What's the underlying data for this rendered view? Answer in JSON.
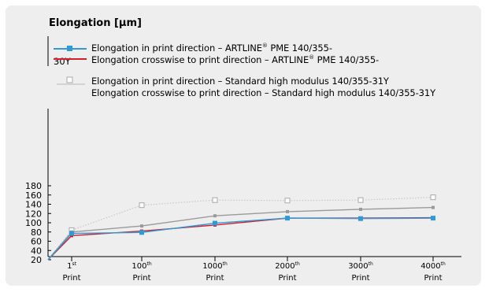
{
  "chart_data": {
    "type": "line",
    "ylabel": "Elongation [µm]",
    "ylim": [
      20,
      180
    ],
    "yticks": [
      20,
      40,
      60,
      80,
      100,
      120,
      140,
      160,
      180
    ],
    "x_start": 0,
    "categories": [
      {
        "num": "1",
        "sup": "st",
        "word": "Print"
      },
      {
        "num": "100",
        "sup": "th",
        "word": "Print"
      },
      {
        "num": "1000",
        "sup": "th",
        "word": "Print"
      },
      {
        "num": "2000",
        "sup": "th",
        "word": "Print"
      },
      {
        "num": "3000",
        "sup": "th",
        "word": "Print"
      },
      {
        "num": "4000",
        "sup": "th",
        "word": "Print"
      }
    ],
    "legend": {
      "line1_a": "Elongation in print direction – ARTLINE",
      "line1_b": "PME 140/355-",
      "line1_cont": "30Y",
      "line2_a": "Elongation crosswise to print direction – ARTLINE",
      "line2_b": "PME 140/355-",
      "line3": "Elongation in print direction – Standard high modulus 140/355-31Y",
      "line4": "Elongation crosswise to print direction – Standard high modulus 140/355-31Y"
    },
    "series": [
      {
        "key": "artline_print",
        "color": "#2f9ad6",
        "marker": "square-filled",
        "start": 20,
        "values": [
          77,
          79,
          99,
          110,
          109,
          110
        ]
      },
      {
        "key": "artline_cross",
        "color": "#d0202c",
        "marker": "square-small",
        "start": 20,
        "values": [
          72,
          82,
          95,
          110,
          110,
          111
        ]
      },
      {
        "key": "std_print",
        "color": "#c8c8c8",
        "marker": "square-open",
        "dotted": true,
        "start": 20,
        "values": [
          84,
          138,
          149,
          148,
          149,
          155
        ]
      },
      {
        "key": "std_cross",
        "color": "#9a9a9a",
        "marker": "square-small-gray",
        "start": 20,
        "values": [
          80,
          93,
          115,
          124,
          129,
          133
        ]
      }
    ],
    "colors": {
      "card": "#eeeeee",
      "axis": "#000000",
      "artline_print": "#2f9ad6",
      "artline_cross": "#d0202c",
      "std_print": "#c8c8c8",
      "std_cross": "#9a9a9a"
    }
  }
}
